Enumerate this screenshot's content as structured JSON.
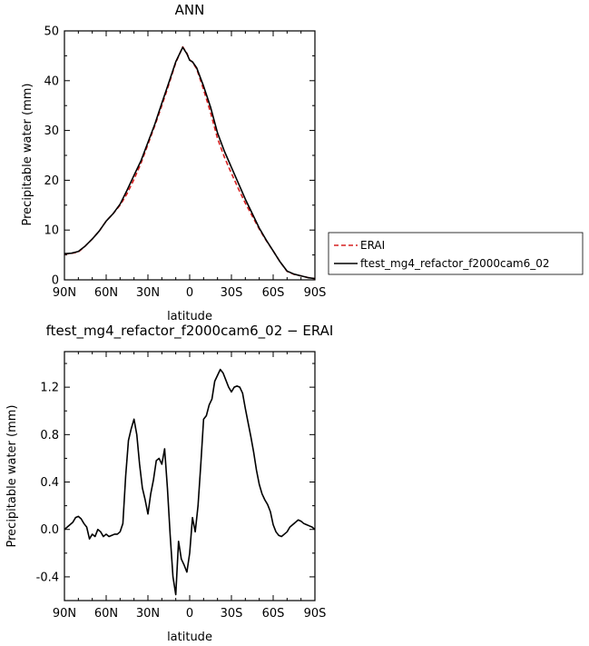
{
  "chart_data": [
    {
      "type": "line",
      "title": "ANN",
      "xlabel": "latitude",
      "ylabel": "Precipitable water (mm)",
      "xlim": [
        90,
        -90
      ],
      "ylim": [
        0,
        50
      ],
      "x_ticks": [
        90,
        60,
        30,
        0,
        -30,
        -60,
        -90
      ],
      "x_tick_labels": [
        "90N",
        "60N",
        "30N",
        "0",
        "30S",
        "60S",
        "90S"
      ],
      "y_ticks": [
        0,
        10,
        20,
        30,
        40,
        50
      ],
      "y_tick_labels": [
        "0",
        "10",
        "20",
        "30",
        "40",
        "50"
      ],
      "legend_position": "right",
      "grid": false,
      "series": [
        {
          "name": "ERAI",
          "color": "#d62020",
          "style": "dashed",
          "x": [
            90,
            85,
            80,
            75,
            70,
            65,
            60,
            55,
            50,
            45,
            40,
            35,
            30,
            25,
            20,
            15,
            10,
            5,
            2,
            0,
            -2,
            -5,
            -10,
            -15,
            -20,
            -25,
            -30,
            -35,
            -40,
            -45,
            -50,
            -55,
            -60,
            -65,
            -70,
            -75,
            -80,
            -85,
            -90
          ],
          "y": [
            5.2,
            5.3,
            5.6,
            6.8,
            8.2,
            9.8,
            11.8,
            13.3,
            15.0,
            17.3,
            20.2,
            23.4,
            27.2,
            31.0,
            35.0,
            39.2,
            43.6,
            46.8,
            45.5,
            44.2,
            43.7,
            42.4,
            38.2,
            33.6,
            28.4,
            24.6,
            21.4,
            18.3,
            15.4,
            12.8,
            10.2,
            7.9,
            5.8,
            3.6,
            1.7,
            1.1,
            0.8,
            0.45,
            0.25
          ]
        },
        {
          "name": "ftest_mg4_refactor_f2000cam6_02",
          "color": "#000000",
          "style": "solid",
          "x": [
            90,
            85,
            80,
            75,
            70,
            65,
            60,
            55,
            50,
            45,
            40,
            35,
            30,
            25,
            20,
            15,
            10,
            5,
            2,
            0,
            -2,
            -5,
            -10,
            -15,
            -20,
            -25,
            -30,
            -35,
            -40,
            -45,
            -50,
            -55,
            -60,
            -65,
            -70,
            -75,
            -80,
            -85,
            -90
          ],
          "y": [
            5.25,
            5.35,
            5.7,
            6.8,
            8.2,
            9.8,
            11.8,
            13.3,
            15.2,
            18.0,
            21.0,
            23.9,
            27.6,
            31.3,
            35.5,
            39.6,
            43.8,
            46.7,
            45.4,
            44.1,
            43.8,
            42.6,
            38.9,
            34.7,
            29.5,
            25.8,
            22.6,
            19.4,
            16.2,
            13.3,
            10.4,
            8.0,
            5.8,
            3.6,
            1.75,
            1.15,
            0.8,
            0.45,
            0.25
          ]
        }
      ]
    },
    {
      "type": "line",
      "title": "ftest_mg4_refactor_f2000cam6_02 − ERAI",
      "xlabel": "latitude",
      "ylabel": "Precipitable water (mm)",
      "xlim": [
        90,
        -90
      ],
      "ylim": [
        -0.6,
        1.5
      ],
      "x_ticks": [
        90,
        60,
        30,
        0,
        -30,
        -60,
        -90
      ],
      "x_tick_labels": [
        "90N",
        "60N",
        "30N",
        "0",
        "30S",
        "60S",
        "90S"
      ],
      "y_ticks": [
        -0.4,
        0.0,
        0.4,
        0.8,
        1.2
      ],
      "y_tick_labels": [
        "-0.4",
        "0.0",
        "0.4",
        "0.8",
        "1.2"
      ],
      "grid": false,
      "series": [
        {
          "color": "#000000",
          "style": "solid",
          "x": [
            90,
            86,
            84,
            82,
            80,
            78,
            76,
            74,
            72,
            70,
            68,
            66,
            64,
            62,
            60,
            58,
            56,
            54,
            52,
            50,
            48,
            46,
            44,
            42,
            40,
            38,
            36,
            34,
            32,
            30,
            28,
            26,
            24,
            22,
            20,
            18,
            16,
            14,
            12,
            10,
            8,
            6,
            4,
            2,
            0,
            -2,
            -4,
            -6,
            -8,
            -10,
            -12,
            -14,
            -16,
            -18,
            -20,
            -22,
            -24,
            -26,
            -28,
            -30,
            -32,
            -34,
            -36,
            -38,
            -40,
            -42,
            -44,
            -46,
            -48,
            -50,
            -52,
            -54,
            -56,
            -58,
            -60,
            -62,
            -64,
            -66,
            -68,
            -70,
            -72,
            -74,
            -76,
            -78,
            -80,
            -82,
            -84,
            -86,
            -88,
            -90
          ],
          "y": [
            0.0,
            0.04,
            0.06,
            0.1,
            0.11,
            0.09,
            0.05,
            0.02,
            -0.08,
            -0.04,
            -0.06,
            0.0,
            -0.02,
            -0.06,
            -0.04,
            -0.06,
            -0.05,
            -0.04,
            -0.04,
            -0.02,
            0.05,
            0.45,
            0.75,
            0.85,
            0.93,
            0.8,
            0.55,
            0.35,
            0.25,
            0.13,
            0.3,
            0.42,
            0.58,
            0.6,
            0.55,
            0.68,
            0.35,
            -0.05,
            -0.4,
            -0.55,
            -0.1,
            -0.25,
            -0.3,
            -0.36,
            -0.2,
            0.1,
            -0.02,
            0.2,
            0.55,
            0.93,
            0.96,
            1.05,
            1.1,
            1.25,
            1.3,
            1.35,
            1.32,
            1.26,
            1.2,
            1.16,
            1.2,
            1.21,
            1.2,
            1.15,
            1.02,
            0.9,
            0.78,
            0.65,
            0.5,
            0.38,
            0.3,
            0.25,
            0.21,
            0.15,
            0.04,
            -0.02,
            -0.05,
            -0.06,
            -0.04,
            -0.02,
            0.02,
            0.04,
            0.06,
            0.08,
            0.07,
            0.05,
            0.04,
            0.03,
            0.02,
            0.0
          ]
        }
      ]
    }
  ]
}
